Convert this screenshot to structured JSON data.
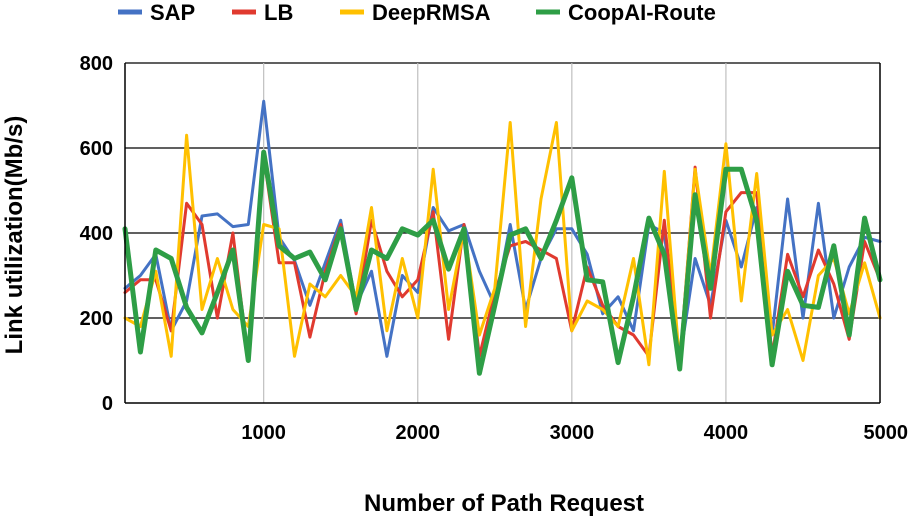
{
  "chart_data": {
    "type": "line",
    "xlabel": "Number of Path Request",
    "ylabel": "Link utilization(Mb/s)",
    "xlim": [
      100,
      5000
    ],
    "ylim": [
      0,
      800
    ],
    "x_ticks": [
      1000,
      2000,
      3000,
      4000,
      5000
    ],
    "y_ticks": [
      0,
      200,
      400,
      600,
      800
    ],
    "grid": {
      "horizontal": true,
      "vertical": true
    },
    "legend": {
      "position": "top"
    },
    "x": [
      100,
      200,
      300,
      400,
      500,
      600,
      700,
      800,
      900,
      1000,
      1100,
      1200,
      1300,
      1400,
      1500,
      1600,
      1700,
      1800,
      1900,
      2000,
      2100,
      2200,
      2300,
      2400,
      2500,
      2600,
      2700,
      2800,
      2900,
      3000,
      3100,
      3200,
      3300,
      3400,
      3500,
      3600,
      3700,
      3800,
      3900,
      4000,
      4100,
      4200,
      4300,
      4400,
      4500,
      4600,
      4700,
      4800,
      4900,
      5000
    ],
    "series": [
      {
        "name": "SAP",
        "color": "#4472C4",
        "width": 3,
        "values": [
          270,
          300,
          350,
          170,
          240,
          440,
          445,
          415,
          420,
          710,
          390,
          335,
          230,
          330,
          430,
          230,
          310,
          110,
          300,
          260,
          460,
          405,
          420,
          310,
          230,
          420,
          220,
          340,
          410,
          410,
          350,
          210,
          250,
          170,
          420,
          400,
          100,
          340,
          230,
          430,
          320,
          460,
          160,
          480,
          200,
          470,
          200,
          320,
          390,
          380
        ]
      },
      {
        "name": "LB",
        "color": "#E03A2F",
        "width": 3,
        "values": [
          260,
          290,
          290,
          170,
          470,
          420,
          200,
          400,
          100,
          580,
          330,
          330,
          155,
          310,
          420,
          210,
          430,
          310,
          250,
          290,
          450,
          150,
          420,
          110,
          260,
          370,
          380,
          360,
          340,
          170,
          320,
          230,
          180,
          160,
          110,
          430,
          90,
          555,
          200,
          450,
          495,
          495,
          110,
          350,
          250,
          360,
          280,
          150,
          380,
          290
        ]
      },
      {
        "name": "DeepRMSA",
        "color": "#FFC000",
        "width": 3,
        "values": [
          200,
          180,
          310,
          110,
          630,
          220,
          340,
          220,
          180,
          420,
          410,
          110,
          280,
          250,
          300,
          250,
          460,
          170,
          340,
          200,
          550,
          220,
          410,
          160,
          270,
          660,
          180,
          480,
          660,
          170,
          240,
          220,
          180,
          340,
          90,
          545,
          90,
          550,
          300,
          610,
          240,
          540,
          160,
          220,
          100,
          300,
          340,
          210,
          330,
          200
        ]
      },
      {
        "name": "CoopAI-Route",
        "color": "#2E9E46",
        "width": 5,
        "values": [
          410,
          120,
          360,
          340,
          225,
          165,
          260,
          360,
          100,
          590,
          370,
          340,
          355,
          290,
          410,
          220,
          360,
          340,
          410,
          395,
          430,
          315,
          410,
          70,
          230,
          395,
          410,
          340,
          430,
          530,
          290,
          285,
          95,
          250,
          435,
          350,
          80,
          490,
          270,
          550,
          550,
          430,
          90,
          310,
          230,
          225,
          370,
          160,
          435,
          290
        ]
      }
    ]
  }
}
